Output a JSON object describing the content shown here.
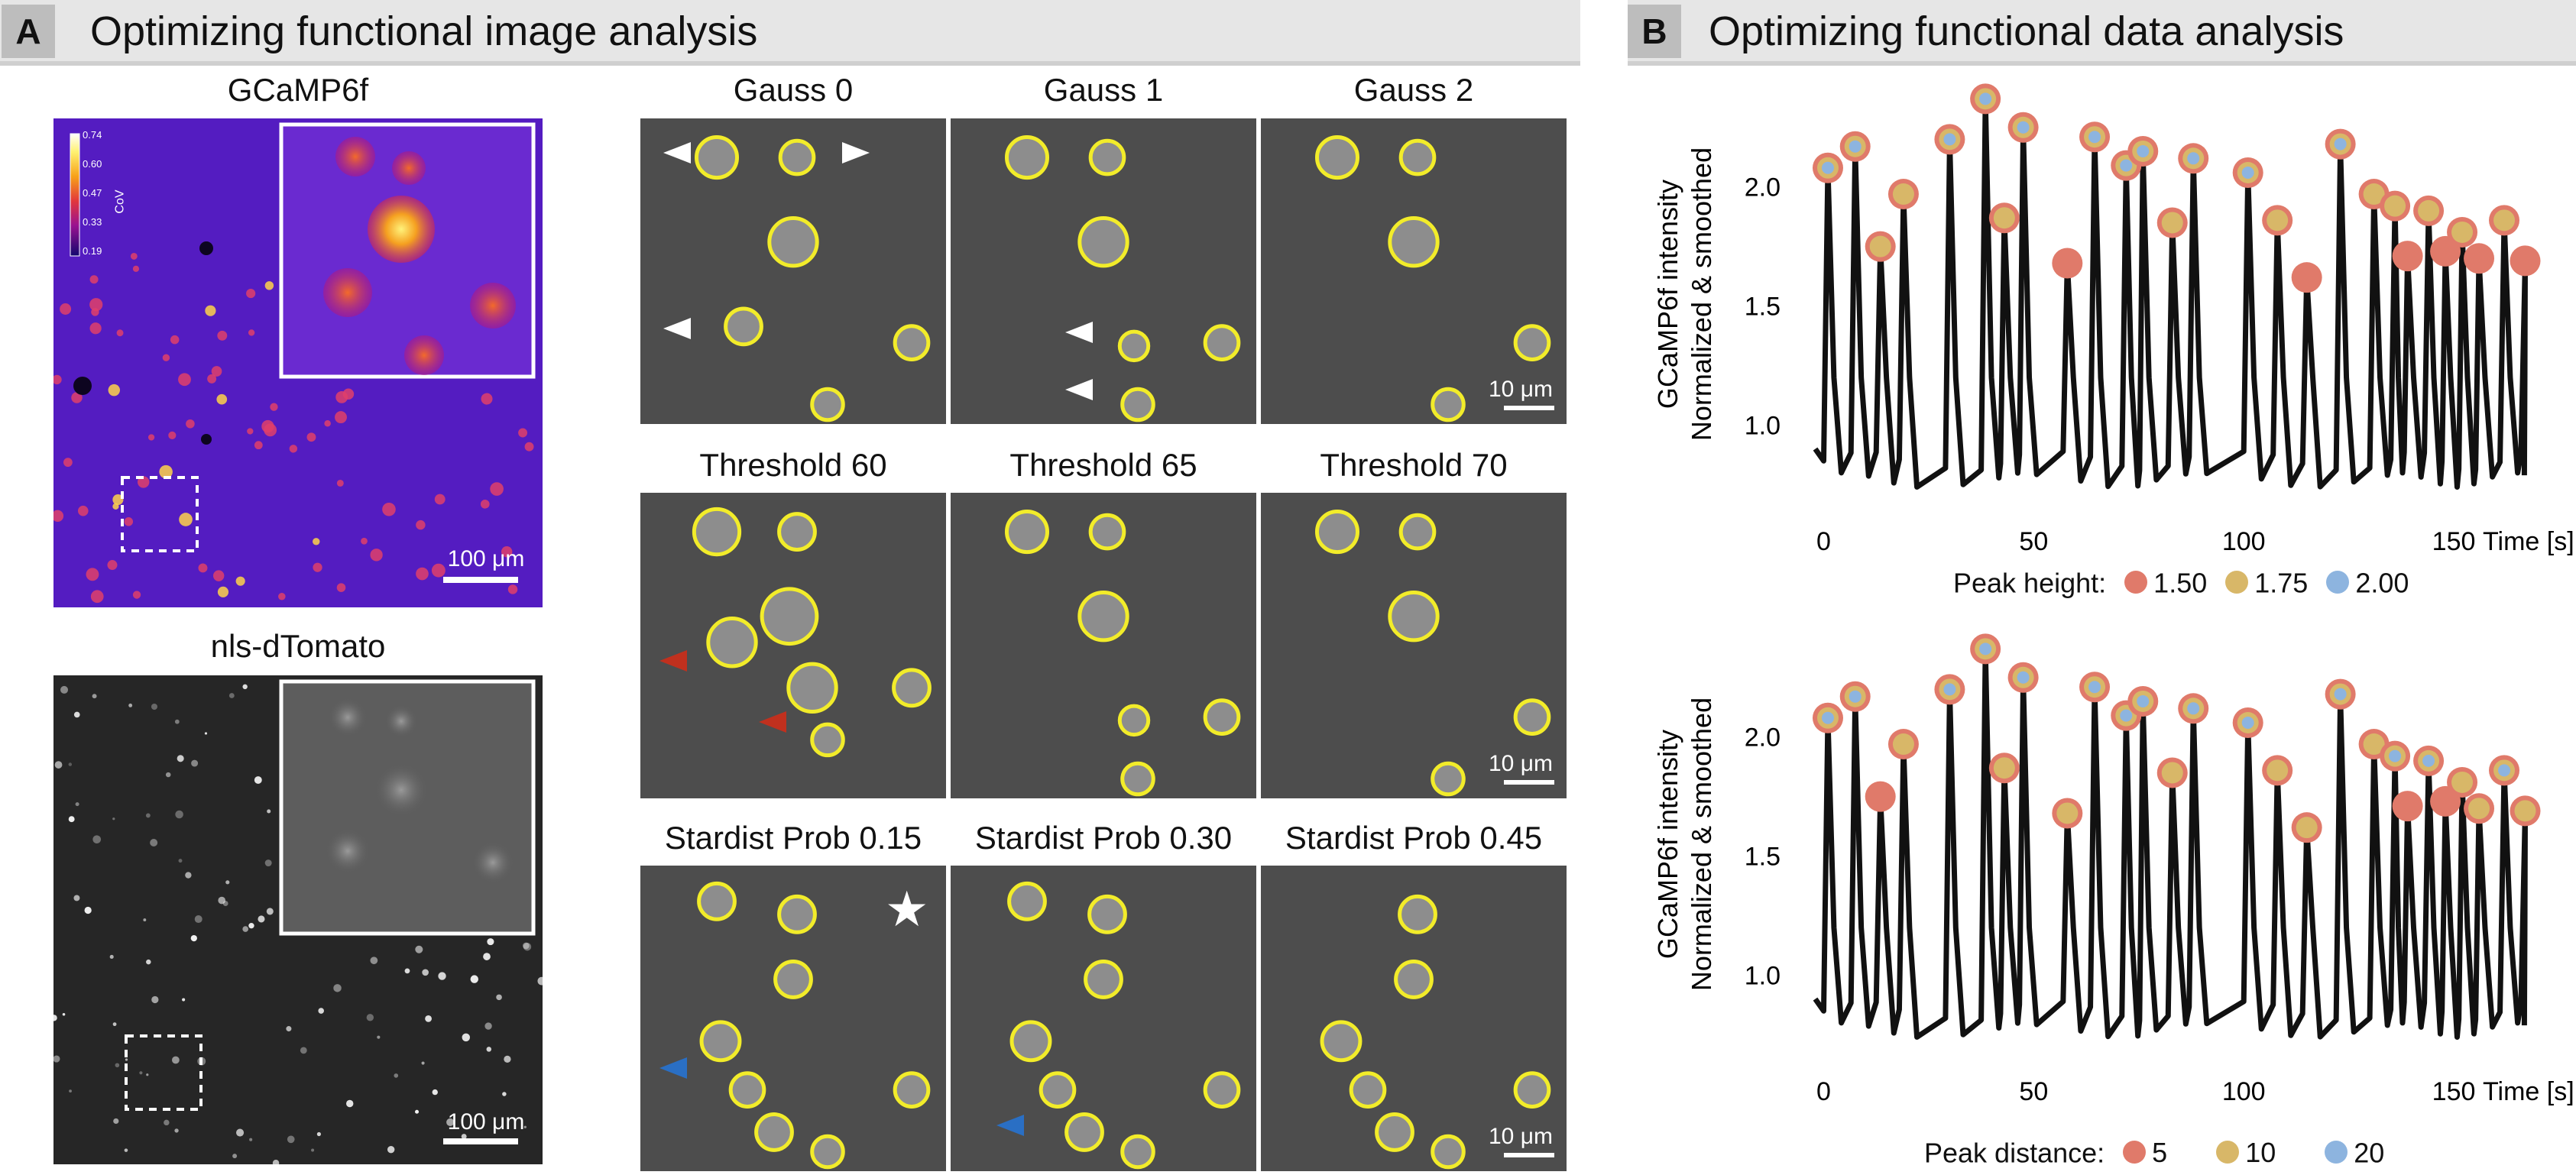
{
  "panelA": {
    "letter": "A",
    "title": "Optimizing functional image analysis",
    "gcamp": {
      "title": "GCaMP6f",
      "scalebar": "100 μm",
      "colorbar": {
        "ticks": [
          "0.74",
          "0.60",
          "0.47",
          "0.33",
          "0.19"
        ],
        "label": "CoV"
      }
    },
    "tomato": {
      "title": "nls-dTomato",
      "scalebar": "100 μm"
    },
    "rows": [
      {
        "titles": [
          "Gauss 0",
          "Gauss 1",
          "Gauss 2"
        ]
      },
      {
        "titles": [
          "Threshold 60",
          "Threshold 65",
          "Threshold 70"
        ]
      },
      {
        "titles": [
          "Stardist Prob 0.15",
          "Stardist Prob 0.30",
          "Stardist Prob 0.45"
        ]
      }
    ],
    "cell_scalebar": "10 μm",
    "star": "★"
  },
  "panelB": {
    "letter": "B",
    "title": "Optimizing functional data analysis",
    "colors": {
      "red": "#e07a6a",
      "gold": "#d8b768",
      "blue": "#8db4df",
      "line": "#111111"
    }
  },
  "chart_data": [
    {
      "type": "line",
      "ylabel": "GCaMP6f intensity\nNormalized & smoothed",
      "xlabel": "Time [s]",
      "xticks": [
        0,
        50,
        100,
        150
      ],
      "yticks": [
        1.0,
        1.5,
        2.0
      ],
      "xlim": [
        -3,
        168
      ],
      "ylim": [
        0.7,
        2.4
      ],
      "legend": {
        "title": "Peak height:",
        "entries": [
          {
            "label": "1.50",
            "color": "#e07a6a"
          },
          {
            "label": "1.75",
            "color": "#d8b768"
          },
          {
            "label": "2.00",
            "color": "#8db4df"
          }
        ]
      },
      "peaks": [
        {
          "t": 1,
          "v": 2.08,
          "level": 3
        },
        {
          "t": 7.5,
          "v": 2.17,
          "level": 3
        },
        {
          "t": 13.5,
          "v": 1.75,
          "level": 2
        },
        {
          "t": 19,
          "v": 1.97,
          "level": 2
        },
        {
          "t": 30,
          "v": 2.2,
          "level": 3
        },
        {
          "t": 38.5,
          "v": 2.37,
          "level": 3
        },
        {
          "t": 43,
          "v": 1.87,
          "level": 2
        },
        {
          "t": 47.5,
          "v": 2.25,
          "level": 3
        },
        {
          "t": 58,
          "v": 1.68,
          "level": 1
        },
        {
          "t": 64.5,
          "v": 2.21,
          "level": 3
        },
        {
          "t": 72,
          "v": 2.09,
          "level": 3
        },
        {
          "t": 76,
          "v": 2.15,
          "level": 3
        },
        {
          "t": 83,
          "v": 1.85,
          "level": 2
        },
        {
          "t": 88,
          "v": 2.12,
          "level": 3
        },
        {
          "t": 101,
          "v": 2.06,
          "level": 3
        },
        {
          "t": 108,
          "v": 1.86,
          "level": 2
        },
        {
          "t": 115,
          "v": 1.62,
          "level": 1
        },
        {
          "t": 123,
          "v": 2.18,
          "level": 3
        },
        {
          "t": 131,
          "v": 1.97,
          "level": 2
        },
        {
          "t": 136,
          "v": 1.92,
          "level": 2
        },
        {
          "t": 139,
          "v": 1.71,
          "level": 1
        },
        {
          "t": 144,
          "v": 1.9,
          "level": 2
        },
        {
          "t": 148,
          "v": 1.73,
          "level": 1
        },
        {
          "t": 152,
          "v": 1.81,
          "level": 2
        },
        {
          "t": 156,
          "v": 1.7,
          "level": 1
        },
        {
          "t": 162,
          "v": 1.86,
          "level": 2
        },
        {
          "t": 167,
          "v": 1.69,
          "level": 1
        }
      ]
    },
    {
      "type": "line",
      "ylabel": "GCaMP6f intensity\nNormalized & smoothed",
      "xlabel": "Time [s]",
      "xticks": [
        0,
        50,
        100,
        150
      ],
      "yticks": [
        1.0,
        1.5,
        2.0
      ],
      "xlim": [
        -3,
        168
      ],
      "ylim": [
        0.7,
        2.4
      ],
      "legend": {
        "title": "Peak distance:",
        "entries": [
          {
            "label": "5",
            "color": "#e07a6a"
          },
          {
            "label": "10",
            "color": "#d8b768"
          },
          {
            "label": "20",
            "color": "#8db4df"
          }
        ]
      },
      "peaks": [
        {
          "t": 1,
          "v": 2.08,
          "level": 3
        },
        {
          "t": 7.5,
          "v": 2.17,
          "level": 3
        },
        {
          "t": 13.5,
          "v": 1.75,
          "level": 1
        },
        {
          "t": 19,
          "v": 1.97,
          "level": 2
        },
        {
          "t": 30,
          "v": 2.2,
          "level": 3
        },
        {
          "t": 38.5,
          "v": 2.37,
          "level": 3
        },
        {
          "t": 43,
          "v": 1.87,
          "level": 2
        },
        {
          "t": 47.5,
          "v": 2.25,
          "level": 3
        },
        {
          "t": 58,
          "v": 1.68,
          "level": 2
        },
        {
          "t": 64.5,
          "v": 2.21,
          "level": 3
        },
        {
          "t": 72,
          "v": 2.09,
          "level": 3
        },
        {
          "t": 76,
          "v": 2.15,
          "level": 3
        },
        {
          "t": 83,
          "v": 1.85,
          "level": 2
        },
        {
          "t": 88,
          "v": 2.12,
          "level": 3
        },
        {
          "t": 101,
          "v": 2.06,
          "level": 3
        },
        {
          "t": 108,
          "v": 1.86,
          "level": 2
        },
        {
          "t": 115,
          "v": 1.62,
          "level": 2
        },
        {
          "t": 123,
          "v": 2.18,
          "level": 3
        },
        {
          "t": 131,
          "v": 1.97,
          "level": 2
        },
        {
          "t": 136,
          "v": 1.92,
          "level": 3
        },
        {
          "t": 139,
          "v": 1.71,
          "level": 1
        },
        {
          "t": 144,
          "v": 1.9,
          "level": 3
        },
        {
          "t": 148,
          "v": 1.73,
          "level": 1
        },
        {
          "t": 152,
          "v": 1.81,
          "level": 2
        },
        {
          "t": 156,
          "v": 1.7,
          "level": 2
        },
        {
          "t": 162,
          "v": 1.86,
          "level": 3
        },
        {
          "t": 167,
          "v": 1.69,
          "level": 2
        }
      ]
    }
  ]
}
